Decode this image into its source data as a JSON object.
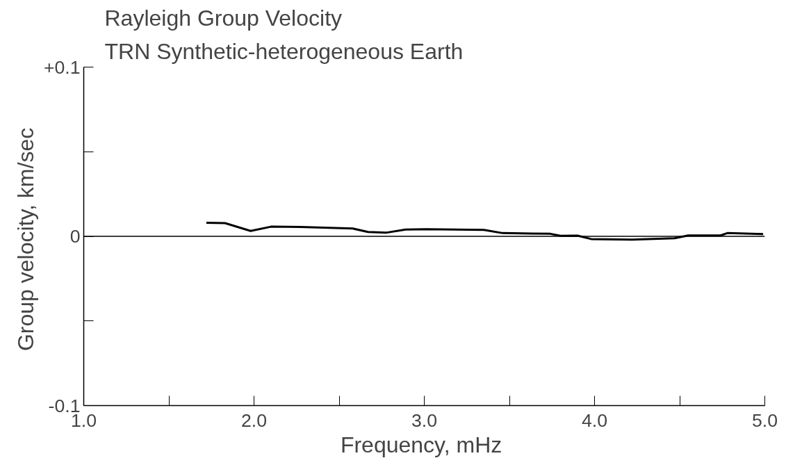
{
  "chart_data": {
    "type": "line",
    "title": "Rayleigh Group Velocity",
    "subtitle": "TRN Synthetic-heterogeneous Earth",
    "xlabel": "Frequency,  mHz",
    "ylabel": "Group velocity,  km/sec",
    "x": [
      1.72,
      1.83,
      1.98,
      2.1,
      2.27,
      2.58,
      2.67,
      2.78,
      2.89,
      3.01,
      3.35,
      3.46,
      3.74,
      3.8,
      3.9,
      3.98,
      4.22,
      4.47,
      4.55,
      4.74,
      4.78,
      4.99
    ],
    "series": [
      {
        "color": "#000000",
        "values": [
          0.008,
          0.0078,
          0.0032,
          0.0057,
          0.0055,
          0.0046,
          0.0026,
          0.0022,
          0.004,
          0.0042,
          0.0038,
          0.0019,
          0.0015,
          0.0003,
          0.0004,
          -0.0016,
          -0.0019,
          -0.0011,
          0.0005,
          0.0005,
          0.0019,
          0.0013
        ]
      }
    ],
    "xlim": [
      1.0,
      5.0
    ],
    "ylim": [
      -0.1,
      0.1
    ],
    "xticks": [
      {
        "value": 1.0,
        "label": "1.0"
      },
      {
        "value": 1.5,
        "label": null
      },
      {
        "value": 2.0,
        "label": "2.0"
      },
      {
        "value": 2.5,
        "label": null
      },
      {
        "value": 3.0,
        "label": "3.0"
      },
      {
        "value": 3.5,
        "label": null
      },
      {
        "value": 4.0,
        "label": "4.0"
      },
      {
        "value": 4.5,
        "label": null
      },
      {
        "value": 5.0,
        "label": "5.0"
      }
    ],
    "yticks": [
      {
        "value": -0.1,
        "label": "-0.1"
      },
      {
        "value": -0.05,
        "label": null
      },
      {
        "value": 0,
        "label": "0"
      },
      {
        "value": 0.05,
        "label": null
      },
      {
        "value": 0.1,
        "label": "+0.1"
      }
    ],
    "ref_lines": [
      {
        "axis": "y",
        "value": 0,
        "color": "#000000"
      }
    ],
    "grid": false,
    "marker": "none",
    "line_style": "solid"
  }
}
